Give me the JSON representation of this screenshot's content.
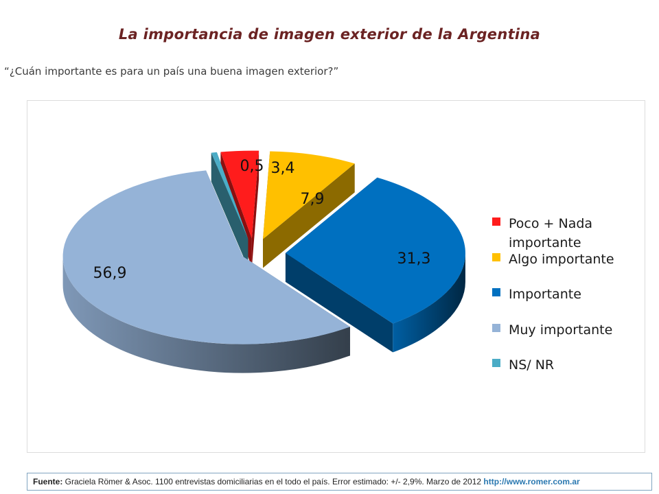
{
  "title": "La importancia de imagen exterior de la Argentina",
  "question": "“¿Cuán importante es para un país una buena imagen exterior?”",
  "source": {
    "label": "Fuente:",
    "text": " Graciela Römer & Asoc. 1100 entrevistas domiciliarias en el todo el país. Error estimado: +/- 2,9%. Marzo de 2012 ",
    "link": "http://www.romer.com.ar"
  },
  "chart_data": {
    "type": "pie",
    "style": "3d-exploded",
    "categories": [
      "Poco + Nada importante",
      "Algo importante",
      "Importante",
      "Muy importante",
      "NS/ NR"
    ],
    "values": [
      3.4,
      7.9,
      31.3,
      56.9,
      0.5
    ],
    "value_labels": [
      "3,4",
      "7,9",
      "31,3",
      "56,9",
      "0,5"
    ],
    "colors": [
      "#ff1c1c",
      "#ffc000",
      "#0070c0",
      "#95b3d7",
      "#4bacc6"
    ],
    "legend": {
      "position": "right",
      "entries": [
        {
          "text": "Poco + Nada",
          "text2": "importante",
          "color": "#ff1c1c"
        },
        {
          "text": "Algo importante",
          "text2": "",
          "color": "#ffc000"
        },
        {
          "text": "Importante",
          "text2": "",
          "color": "#0070c0"
        },
        {
          "text": "Muy importante",
          "text2": "",
          "color": "#95b3d7"
        },
        {
          "text": "NS/ NR",
          "text2": "",
          "color": "#4bacc6"
        }
      ]
    }
  }
}
